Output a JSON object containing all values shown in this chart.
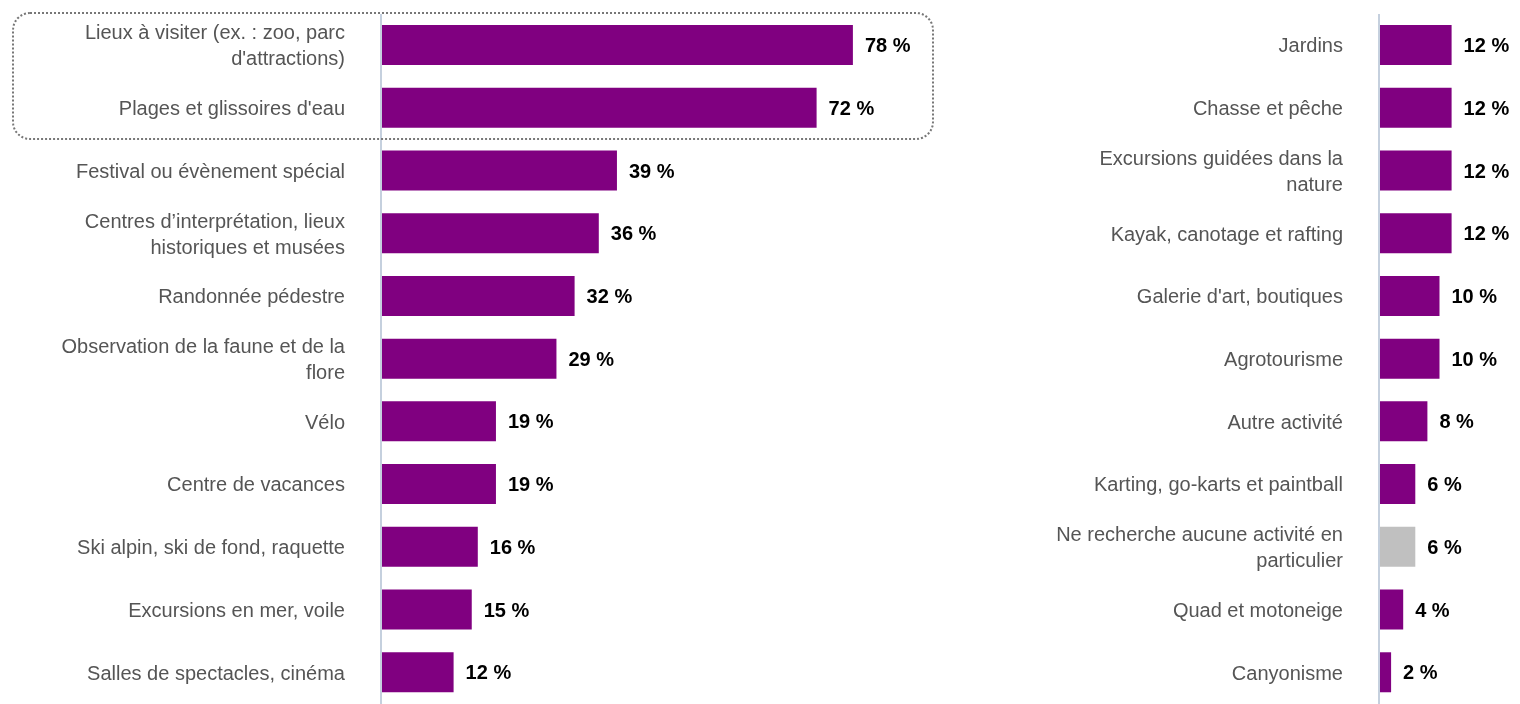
{
  "chart_data": [
    {
      "type": "bar",
      "orientation": "horizontal",
      "categories": [
        "Lieux à visiter (ex. : zoo, parc d'attractions)",
        "Plages et glissoires d'eau",
        "Festival ou évènement spécial",
        "Centres d’interprétation, lieux historiques et musées",
        "Randonnée pédestre",
        "Observation de la faune et de la flore",
        "Vélo",
        "Centre de vacances",
        "Ski alpin, ski de fond, raquette",
        "Excursions en mer, voile",
        "Salles de spectacles, cinéma"
      ],
      "values": [
        78,
        72,
        39,
        36,
        32,
        29,
        19,
        19,
        16,
        15,
        12
      ],
      "color": "#800080",
      "value_labels": [
        "78 %",
        "72 %",
        "39 %",
        "36 %",
        "32 %",
        "29 %",
        "19 %",
        "19 %",
        "16 %",
        "15 %",
        "12 %"
      ]
    },
    {
      "type": "bar",
      "orientation": "horizontal",
      "categories": [
        "Jardins",
        "Chasse et pêche",
        "Excursions guidées dans la nature",
        "Kayak, canotage et rafting",
        "Galerie d'art, boutiques",
        "Agrotourisme",
        "Autre activité",
        "Karting, go-karts et paintball",
        "Ne recherche aucune activité en particulier",
        "Quad et motoneige",
        "Canyonisme"
      ],
      "values": [
        12,
        12,
        12,
        12,
        10,
        10,
        8,
        6,
        6,
        4,
        2
      ],
      "colors": [
        "#800080",
        "#800080",
        "#800080",
        "#800080",
        "#800080",
        "#800080",
        "#800080",
        "#800080",
        "#c0c0c0",
        "#800080",
        "#800080"
      ],
      "value_labels": [
        "12 %",
        "12 %",
        "12 %",
        "12 %",
        "10 %",
        "10 %",
        "8 %",
        "6 %",
        "6 %",
        "4 %",
        "2 %"
      ]
    }
  ]
}
